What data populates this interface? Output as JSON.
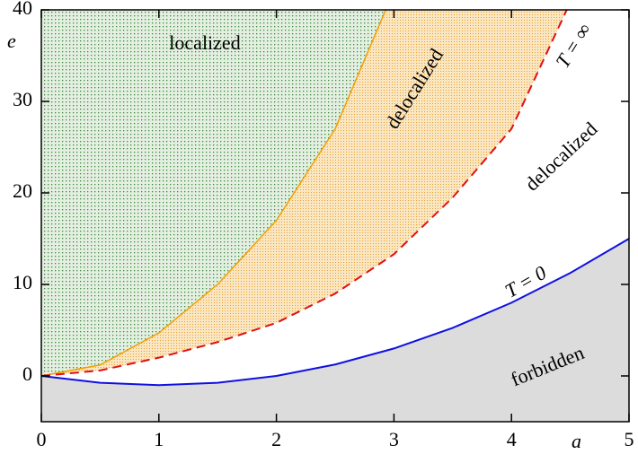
{
  "chart_data": {
    "type": "line",
    "xlabel": "a",
    "ylabel": "e",
    "xlim": [
      0,
      5
    ],
    "ylim": [
      -5,
      40
    ],
    "xticks": [
      0,
      1,
      2,
      3,
      4,
      5
    ],
    "yticks": [
      0,
      10,
      20,
      30,
      40
    ],
    "series": [
      {
        "color": "#f0a000",
        "dash": false,
        "x": [
          0,
          0.5,
          1,
          1.5,
          2,
          2.5,
          2.93
        ],
        "values": [
          0,
          1.2,
          4.7,
          10,
          17,
          27,
          40
        ]
      },
      {
        "name": "T = ∞",
        "color": "#e01010",
        "dash": true,
        "x": [
          0,
          0.5,
          1,
          1.5,
          2,
          2.5,
          3,
          3.5,
          4,
          4.47
        ],
        "values": [
          0,
          0.6,
          2,
          3.7,
          5.8,
          9,
          13.3,
          19.5,
          27,
          40
        ]
      },
      {
        "name": "T = 0",
        "color": "#1010e0",
        "dash": false,
        "x": [
          0,
          0.5,
          1,
          1.5,
          2,
          2.5,
          3,
          3.5,
          4,
          4.5,
          5
        ],
        "values": [
          0,
          -0.75,
          -1,
          -0.75,
          0,
          1.25,
          3,
          5.25,
          8,
          11.25,
          15
        ]
      }
    ],
    "annotations": [
      "localized",
      "delocalized",
      "delocalized",
      "forbidden"
    ]
  }
}
